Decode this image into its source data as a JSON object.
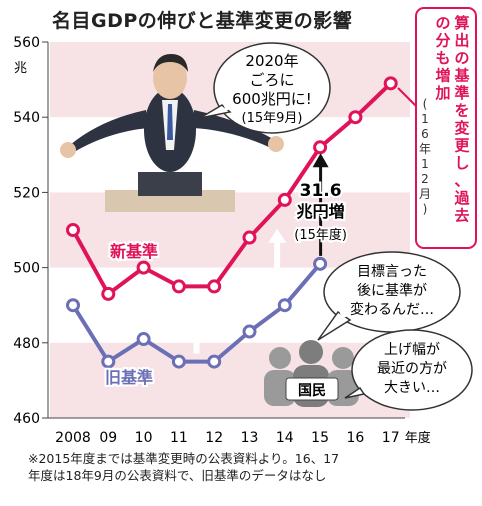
{
  "title": "名目GDPの伸びと基準変更の影響",
  "chart_data": {
    "type": "line",
    "y_unit_label": "兆",
    "x_unit_label": "年度",
    "x_tick_labels": [
      "2008",
      "09",
      "10",
      "11",
      "12",
      "13",
      "14",
      "15",
      "16",
      "17"
    ],
    "x": [
      2008,
      2009,
      2010,
      2011,
      2012,
      2013,
      2014,
      2015,
      2016,
      2017
    ],
    "ylim": [
      460,
      560
    ],
    "y_ticks": [
      460,
      480,
      500,
      520,
      540,
      560
    ],
    "grid": "horizontal bands",
    "series": [
      {
        "name": "新基準",
        "color": "#e0135a",
        "values": [
          510,
          493,
          500,
          495,
          495,
          508,
          518,
          532,
          540,
          549
        ]
      },
      {
        "name": "旧基準",
        "color": "#6b6fb5",
        "values": [
          490,
          475,
          481,
          475,
          475,
          483,
          490,
          501,
          null,
          null
        ]
      }
    ],
    "annotations": {
      "speech_lines": [
        "2020年",
        "ごろに",
        "600兆円に!",
        "(15年9月)"
      ],
      "increase_lines": [
        "31.6",
        "兆円増",
        "(15年度)"
      ],
      "side_note_main": "算出の基準を変更し、過去の分も増加",
      "side_note_date": "(16年12月)",
      "citizen_label": "国民",
      "citizen_quote_1": [
        "目標言った",
        "後に基準が",
        "変わるんだ…"
      ],
      "citizen_quote_2": [
        "上げ幅が",
        "最近の方が",
        "大きい…"
      ]
    }
  },
  "footnote": "※2015年度までは基準変更時の公表資料より。16、17\n年度は18年9月の公表資料で、旧基準のデータはなし",
  "colors": {
    "new": "#e0135a",
    "old": "#6b6fb5",
    "band": "#f7e3e6",
    "arrow": "#ffffff"
  }
}
